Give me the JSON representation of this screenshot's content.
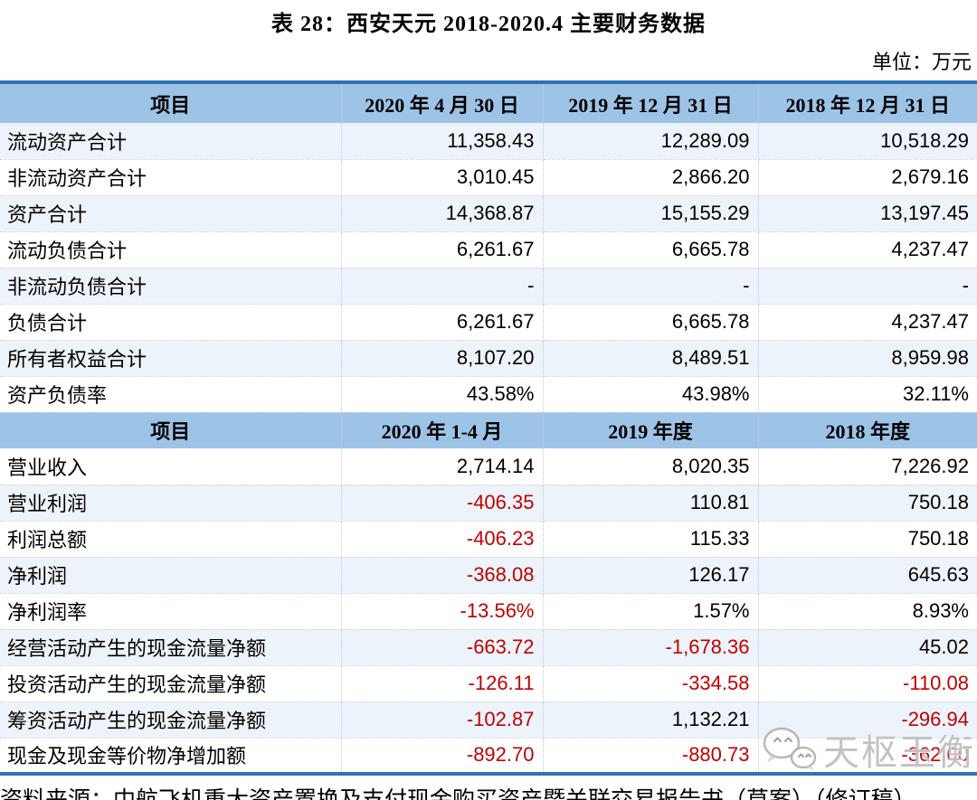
{
  "title": "表 28：西安天元 2018-2020.4 主要财务数据",
  "unit_label": "单位：万元",
  "table": {
    "sections": [
      {
        "header": [
          "项目",
          "2020 年 4 月 30 日",
          "2019 年 12 月 31 日",
          "2018 年 12 月 31 日"
        ],
        "rows": [
          {
            "label": "流动资产合计",
            "values": [
              "11,358.43",
              "12,289.09",
              "10,518.29"
            ]
          },
          {
            "label": "非流动资产合计",
            "values": [
              "3,010.45",
              "2,866.20",
              "2,679.16"
            ]
          },
          {
            "label": "资产合计",
            "values": [
              "14,368.87",
              "15,155.29",
              "13,197.45"
            ]
          },
          {
            "label": "流动负债合计",
            "values": [
              "6,261.67",
              "6,665.78",
              "4,237.47"
            ]
          },
          {
            "label": "非流动负债合计",
            "values": [
              "-",
              "-",
              "-"
            ]
          },
          {
            "label": "负债合计",
            "values": [
              "6,261.67",
              "6,665.78",
              "4,237.47"
            ]
          },
          {
            "label": "所有者权益合计",
            "values": [
              "8,107.20",
              "8,489.51",
              "8,959.98"
            ]
          },
          {
            "label": "资产负债率",
            "values": [
              "43.58%",
              "43.98%",
              "32.11%"
            ]
          }
        ]
      },
      {
        "header": [
          "项目",
          "2020 年 1-4 月",
          "2019 年度",
          "2018 年度"
        ],
        "rows": [
          {
            "label": "营业收入",
            "values": [
              "2,714.14",
              "8,020.35",
              "7,226.92"
            ]
          },
          {
            "label": "营业利润",
            "values": [
              "-406.35",
              "110.81",
              "750.18"
            ]
          },
          {
            "label": "利润总额",
            "values": [
              "-406.23",
              "115.33",
              "750.18"
            ]
          },
          {
            "label": "净利润",
            "values": [
              "-368.08",
              "126.17",
              "645.63"
            ]
          },
          {
            "label": "净利润率",
            "values": [
              "-13.56%",
              "1.57%",
              "8.93%"
            ]
          },
          {
            "label": "经营活动产生的现金流量净额",
            "values": [
              "-663.72",
              "-1,678.36",
              "45.02"
            ]
          },
          {
            "label": "投资活动产生的现金流量净额",
            "values": [
              "-126.11",
              "-334.58",
              "-110.08"
            ]
          },
          {
            "label": "筹资活动产生的现金流量净额",
            "values": [
              "-102.87",
              "1,132.21",
              "-296.94"
            ]
          },
          {
            "label": "现金及现金等价物净增加额",
            "values": [
              "-892.70",
              "-880.73",
              "-362.00"
            ]
          }
        ]
      }
    ]
  },
  "source_note": "资料来源：中航飞机重大资产置换及支付现金购买资产暨关联交易报告书（草案）（修订稿）。",
  "watermark": {
    "text": "天枢玉衡",
    "icon": "wechat-icon"
  },
  "colors": {
    "accent_border_blue": "#2E75B6",
    "header_bg_blue": "#9DC3E6",
    "stripe_bg_blue": "#EDF3FA",
    "negative_red": "#C00000",
    "watermark_gray": "#AFAFAF"
  }
}
